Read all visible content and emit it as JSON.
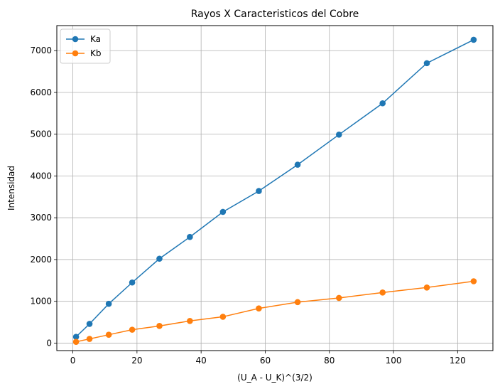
{
  "chart_data": {
    "type": "line",
    "title": "Rayos X Caracteristicos del Cobre",
    "xlabel": "(U_A - U_K)^(3/2)",
    "ylabel": "Intensidad",
    "xlim": [
      -5,
      131
    ],
    "ylim": [
      -180,
      7600
    ],
    "xticks": [
      0,
      20,
      40,
      60,
      80,
      100,
      120
    ],
    "yticks": [
      0,
      1000,
      2000,
      3000,
      4000,
      5000,
      6000,
      7000
    ],
    "grid": true,
    "legend_position": "top-left",
    "x": [
      1.0,
      5.2,
      11.2,
      18.5,
      27.0,
      36.5,
      46.8,
      58.0,
      70.1,
      83.0,
      96.6,
      110.4,
      125.0
    ],
    "series": [
      {
        "name": "Ka",
        "color": "#1f77b4",
        "marker": "circle",
        "values": [
          150,
          460,
          940,
          1450,
          2020,
          2540,
          3140,
          3640,
          4270,
          4990,
          5740,
          6700,
          7260
        ]
      },
      {
        "name": "Kb",
        "color": "#ff7f0e",
        "marker": "circle",
        "values": [
          30,
          100,
          200,
          320,
          410,
          530,
          630,
          830,
          980,
          1080,
          1210,
          1330,
          1480
        ]
      }
    ]
  }
}
